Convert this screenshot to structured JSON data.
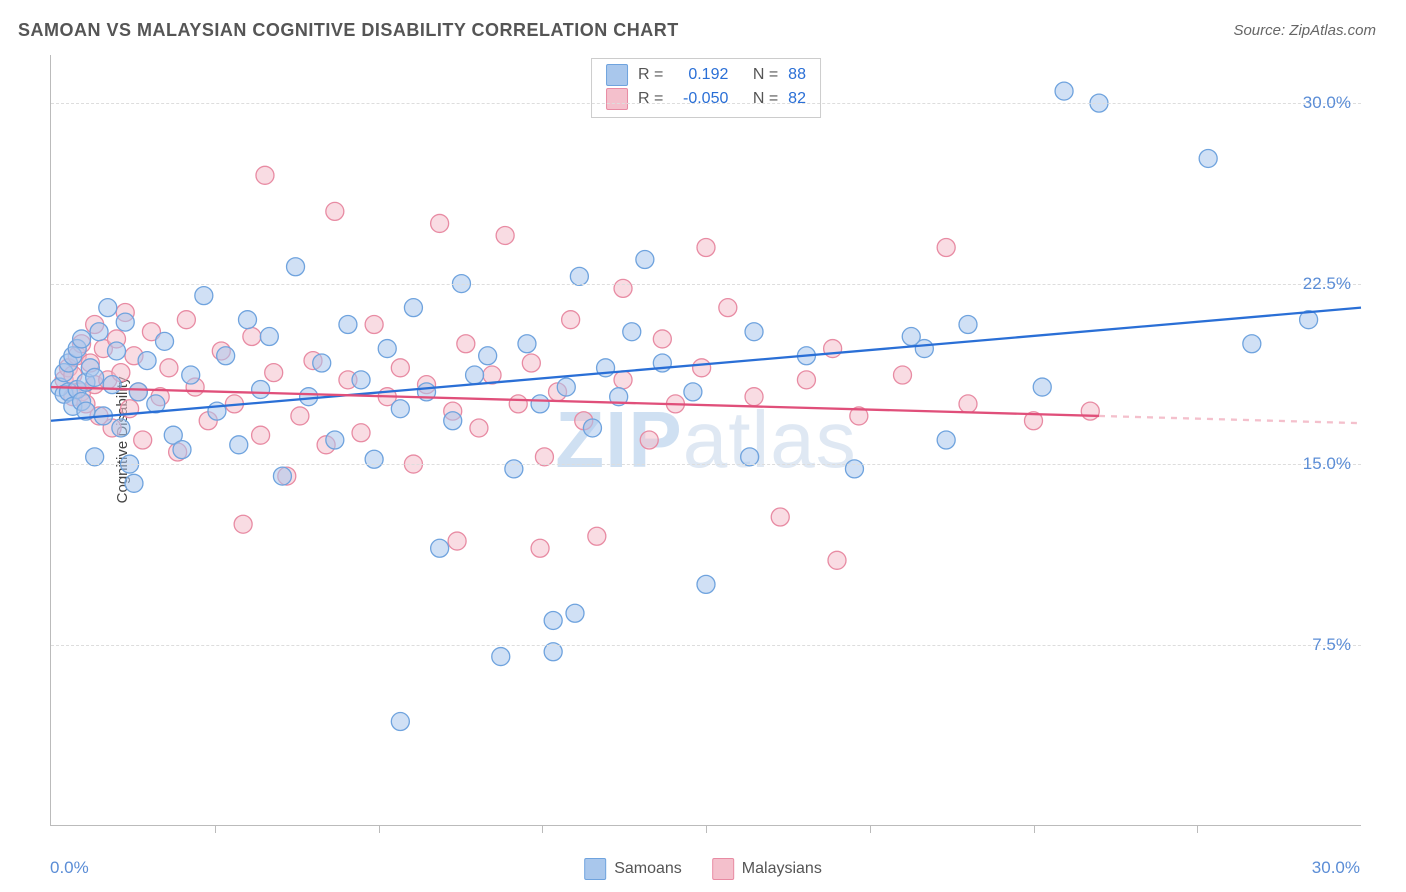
{
  "title": "SAMOAN VS MALAYSIAN COGNITIVE DISABILITY CORRELATION CHART",
  "source": "Source: ZipAtlas.com",
  "ylabel": "Cognitive Disability",
  "watermark_zip": "ZIP",
  "watermark_atlas": "atlas",
  "chart": {
    "type": "scatter",
    "background_color": "#ffffff",
    "grid_color": "#dddddd",
    "axis_color": "#bbbbbb",
    "tick_label_color": "#5b8dd6",
    "tick_fontsize": 17,
    "xlim": [
      0,
      30
    ],
    "ylim": [
      0,
      32
    ],
    "xtick_min_label": "0.0%",
    "xtick_max_label": "30.0%",
    "ytick_labels": [
      "7.5%",
      "15.0%",
      "22.5%",
      "30.0%"
    ],
    "ytick_values": [
      7.5,
      15.0,
      22.5,
      30.0
    ],
    "xtick_values": [
      3.75,
      7.5,
      11.25,
      15.0,
      18.75,
      22.5,
      26.25
    ],
    "series": [
      {
        "name": "Samoans",
        "label": "Samoans",
        "color_fill": "#a9c7ec",
        "color_stroke": "#6fa3de",
        "fill_opacity": 0.55,
        "marker_radius": 9,
        "trend": {
          "x1": 0,
          "y1": 16.8,
          "x2": 30,
          "y2": 21.5,
          "color": "#2a6fd6",
          "width": 2.3
        },
        "R_label": "R =",
        "R_value": "0.192",
        "N_label": "N =",
        "N_value": "88",
        "points": [
          [
            0.2,
            18.2
          ],
          [
            0.3,
            18.8
          ],
          [
            0.3,
            17.9
          ],
          [
            0.4,
            19.2
          ],
          [
            0.4,
            18.0
          ],
          [
            0.5,
            17.4
          ],
          [
            0.5,
            19.5
          ],
          [
            0.6,
            18.1
          ],
          [
            0.6,
            19.8
          ],
          [
            0.7,
            17.6
          ],
          [
            0.7,
            20.2
          ],
          [
            0.8,
            18.4
          ],
          [
            0.8,
            17.2
          ],
          [
            0.9,
            19.0
          ],
          [
            1.0,
            18.6
          ],
          [
            1.0,
            15.3
          ],
          [
            1.1,
            20.5
          ],
          [
            1.2,
            17.0
          ],
          [
            1.3,
            21.5
          ],
          [
            1.4,
            18.3
          ],
          [
            1.5,
            19.7
          ],
          [
            1.6,
            16.5
          ],
          [
            1.7,
            20.9
          ],
          [
            1.8,
            15.0
          ],
          [
            1.9,
            14.2
          ],
          [
            2.0,
            18.0
          ],
          [
            2.2,
            19.3
          ],
          [
            2.4,
            17.5
          ],
          [
            2.6,
            20.1
          ],
          [
            2.8,
            16.2
          ],
          [
            3.0,
            15.6
          ],
          [
            3.2,
            18.7
          ],
          [
            3.5,
            22.0
          ],
          [
            3.8,
            17.2
          ],
          [
            4.0,
            19.5
          ],
          [
            4.3,
            15.8
          ],
          [
            4.5,
            21.0
          ],
          [
            4.8,
            18.1
          ],
          [
            5.0,
            20.3
          ],
          [
            5.3,
            14.5
          ],
          [
            5.6,
            23.2
          ],
          [
            5.9,
            17.8
          ],
          [
            6.2,
            19.2
          ],
          [
            6.5,
            16.0
          ],
          [
            6.8,
            20.8
          ],
          [
            7.1,
            18.5
          ],
          [
            7.4,
            15.2
          ],
          [
            7.7,
            19.8
          ],
          [
            8.0,
            17.3
          ],
          [
            8.0,
            4.3
          ],
          [
            8.3,
            21.5
          ],
          [
            8.6,
            18.0
          ],
          [
            8.9,
            11.5
          ],
          [
            9.2,
            16.8
          ],
          [
            9.4,
            22.5
          ],
          [
            9.7,
            18.7
          ],
          [
            10.0,
            19.5
          ],
          [
            10.3,
            7.0
          ],
          [
            10.6,
            14.8
          ],
          [
            10.9,
            20.0
          ],
          [
            11.2,
            17.5
          ],
          [
            11.5,
            8.5
          ],
          [
            11.5,
            7.2
          ],
          [
            11.8,
            18.2
          ],
          [
            12.0,
            8.8
          ],
          [
            12.1,
            22.8
          ],
          [
            12.4,
            16.5
          ],
          [
            12.7,
            19.0
          ],
          [
            13.0,
            17.8
          ],
          [
            13.3,
            20.5
          ],
          [
            13.6,
            23.5
          ],
          [
            14.0,
            19.2
          ],
          [
            14.7,
            18.0
          ],
          [
            15.0,
            10.0
          ],
          [
            16.0,
            15.3
          ],
          [
            16.1,
            20.5
          ],
          [
            17.3,
            19.5
          ],
          [
            18.4,
            14.8
          ],
          [
            19.7,
            20.3
          ],
          [
            20.0,
            19.8
          ],
          [
            20.5,
            16.0
          ],
          [
            21.0,
            20.8
          ],
          [
            22.7,
            18.2
          ],
          [
            23.2,
            30.5
          ],
          [
            24.0,
            30.0
          ],
          [
            26.5,
            27.7
          ],
          [
            27.5,
            20.0
          ],
          [
            28.8,
            21.0
          ]
        ]
      },
      {
        "name": "Malaysians",
        "label": "Malaysians",
        "color_fill": "#f4c0cc",
        "color_stroke": "#e88ba3",
        "fill_opacity": 0.55,
        "marker_radius": 9,
        "trend_solid": {
          "x1": 0,
          "y1": 18.2,
          "x2": 24,
          "y2": 17.0,
          "color": "#e04f7a",
          "width": 2.3
        },
        "trend_dash": {
          "x1": 24,
          "y1": 17.0,
          "x2": 30,
          "y2": 16.7,
          "color": "#f4c0cc",
          "width": 2.3
        },
        "R_label": "R =",
        "R_value": "-0.050",
        "N_label": "N =",
        "N_value": "82",
        "points": [
          [
            0.3,
            18.5
          ],
          [
            0.4,
            19.0
          ],
          [
            0.5,
            17.8
          ],
          [
            0.5,
            18.7
          ],
          [
            0.6,
            19.5
          ],
          [
            0.7,
            18.0
          ],
          [
            0.7,
            20.0
          ],
          [
            0.8,
            17.5
          ],
          [
            0.9,
            19.2
          ],
          [
            1.0,
            18.3
          ],
          [
            1.0,
            20.8
          ],
          [
            1.1,
            17.0
          ],
          [
            1.2,
            19.8
          ],
          [
            1.3,
            18.5
          ],
          [
            1.4,
            16.5
          ],
          [
            1.5,
            20.2
          ],
          [
            1.6,
            18.8
          ],
          [
            1.7,
            21.3
          ],
          [
            1.8,
            17.3
          ],
          [
            1.9,
            19.5
          ],
          [
            2.0,
            18.0
          ],
          [
            2.1,
            16.0
          ],
          [
            2.3,
            20.5
          ],
          [
            2.5,
            17.8
          ],
          [
            2.7,
            19.0
          ],
          [
            2.9,
            15.5
          ],
          [
            3.1,
            21.0
          ],
          [
            3.3,
            18.2
          ],
          [
            3.6,
            16.8
          ],
          [
            3.9,
            19.7
          ],
          [
            4.2,
            17.5
          ],
          [
            4.4,
            12.5
          ],
          [
            4.6,
            20.3
          ],
          [
            4.8,
            16.2
          ],
          [
            4.9,
            27.0
          ],
          [
            5.1,
            18.8
          ],
          [
            5.4,
            14.5
          ],
          [
            5.7,
            17.0
          ],
          [
            6.0,
            19.3
          ],
          [
            6.3,
            15.8
          ],
          [
            6.5,
            25.5
          ],
          [
            6.8,
            18.5
          ],
          [
            7.1,
            16.3
          ],
          [
            7.4,
            20.8
          ],
          [
            7.7,
            17.8
          ],
          [
            8.0,
            19.0
          ],
          [
            8.3,
            15.0
          ],
          [
            8.6,
            18.3
          ],
          [
            8.9,
            25.0
          ],
          [
            9.2,
            17.2
          ],
          [
            9.3,
            11.8
          ],
          [
            9.5,
            20.0
          ],
          [
            9.8,
            16.5
          ],
          [
            10.1,
            18.7
          ],
          [
            10.4,
            24.5
          ],
          [
            10.7,
            17.5
          ],
          [
            11.0,
            19.2
          ],
          [
            11.2,
            11.5
          ],
          [
            11.3,
            15.3
          ],
          [
            11.6,
            18.0
          ],
          [
            11.9,
            21.0
          ],
          [
            12.2,
            16.8
          ],
          [
            12.5,
            12.0
          ],
          [
            13.1,
            18.5
          ],
          [
            13.1,
            22.3
          ],
          [
            13.7,
            16.0
          ],
          [
            14.0,
            20.2
          ],
          [
            14.3,
            17.5
          ],
          [
            14.9,
            19.0
          ],
          [
            15.5,
            21.5
          ],
          [
            16.1,
            17.8
          ],
          [
            15.0,
            24.0
          ],
          [
            16.7,
            12.8
          ],
          [
            17.3,
            18.5
          ],
          [
            17.9,
            19.8
          ],
          [
            18.0,
            11.0
          ],
          [
            18.5,
            17.0
          ],
          [
            19.5,
            18.7
          ],
          [
            20.5,
            24.0
          ],
          [
            21.0,
            17.5
          ],
          [
            22.5,
            16.8
          ],
          [
            23.8,
            17.2
          ]
        ]
      }
    ]
  }
}
